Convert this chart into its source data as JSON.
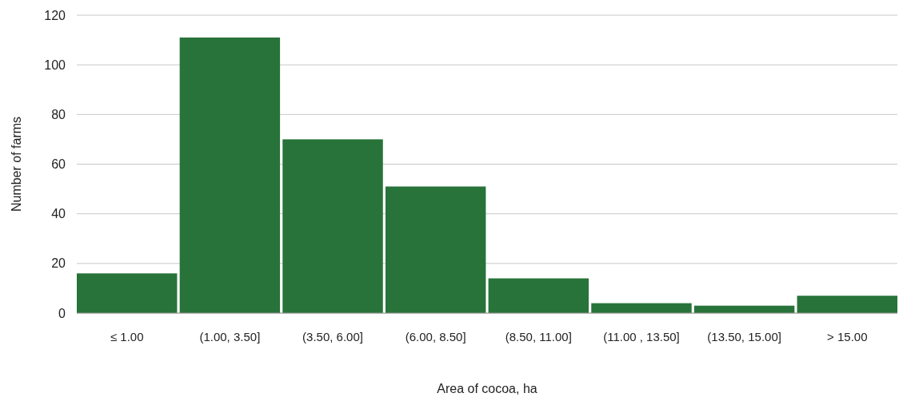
{
  "chart_data": {
    "type": "bar",
    "xlabel": "Area of cocoa, ha",
    "ylabel": "Number of farms",
    "categories": [
      "≤ 1.00",
      "(1.00, 3.50]",
      "(3.50, 6.00]",
      "(6.00, 8.50]",
      "(8.50, 11.00]",
      "(11.00 , 13.50]",
      "(13.50, 15.00]",
      "> 15.00"
    ],
    "values": [
      16,
      111,
      70,
      51,
      14,
      4,
      3,
      7
    ],
    "color": "#277339",
    "ylim": [
      0,
      120
    ],
    "yticks": [
      0,
      20,
      40,
      60,
      80,
      100,
      120
    ],
    "grid": "y"
  }
}
